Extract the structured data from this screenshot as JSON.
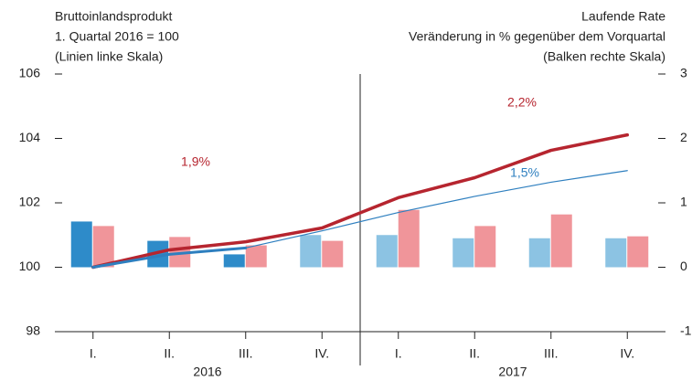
{
  "chart_data": {
    "type": "bar-line",
    "title_left": [
      "Bruttoinlandsprodukt",
      "1. Quartal 2016 = 100",
      "(Linien linke Skala)"
    ],
    "title_right": [
      "Laufende Rate",
      "Veränderung in % gegenüber dem Vorquartal",
      "(Balken rechte Skala)"
    ],
    "categories": [
      "I.",
      "II.",
      "III.",
      "IV.",
      "I.",
      "II.",
      "III.",
      "IV."
    ],
    "groups": [
      {
        "label": "2016",
        "span": 4
      },
      {
        "label": "2017",
        "span": 4
      }
    ],
    "ylim": [
      98,
      106
    ],
    "yticks": [
      98,
      100,
      102,
      104,
      106
    ],
    "y2lim": [
      -1,
      3
    ],
    "y2ticks": [
      -1,
      0,
      1,
      2,
      3
    ],
    "bars": [
      {
        "axis": "y2",
        "colors": [
          "#2e8bc9",
          "#2e8bc9",
          "#2e8bc9",
          "#8cc3e3",
          "#8cc3e3",
          "#8cc3e3",
          "#8cc3e3",
          "#8cc3e3"
        ],
        "values": [
          0.71,
          0.41,
          0.2,
          0.5,
          0.5,
          0.45,
          0.45,
          0.45
        ]
      },
      {
        "axis": "y2",
        "color": "#f0959a",
        "values": [
          0.64,
          0.47,
          0.34,
          0.41,
          0.89,
          0.64,
          0.82,
          0.48
        ]
      }
    ],
    "lines": [
      {
        "color": "#b6252f",
        "width": 3.5,
        "values": [
          100,
          100.54,
          100.79,
          101.22,
          102.16,
          102.78,
          103.63,
          104.11
        ]
      },
      {
        "color": "#2e7fbf",
        "width": 3,
        "values": [
          100,
          100.4,
          100.6,
          null,
          null,
          null,
          null,
          null
        ]
      },
      {
        "color": "#2e7fbf",
        "width": 1.2,
        "values": [
          null,
          null,
          100.6,
          101.13,
          101.7,
          102.2,
          102.64,
          103.0
        ]
      }
    ],
    "annotations": [
      {
        "text": "1,9%",
        "color": "#b6252f"
      },
      {
        "text": "2,2%",
        "color": "#b6252f"
      },
      {
        "text": "1,5%",
        "color": "#2e7fbf"
      }
    ]
  }
}
